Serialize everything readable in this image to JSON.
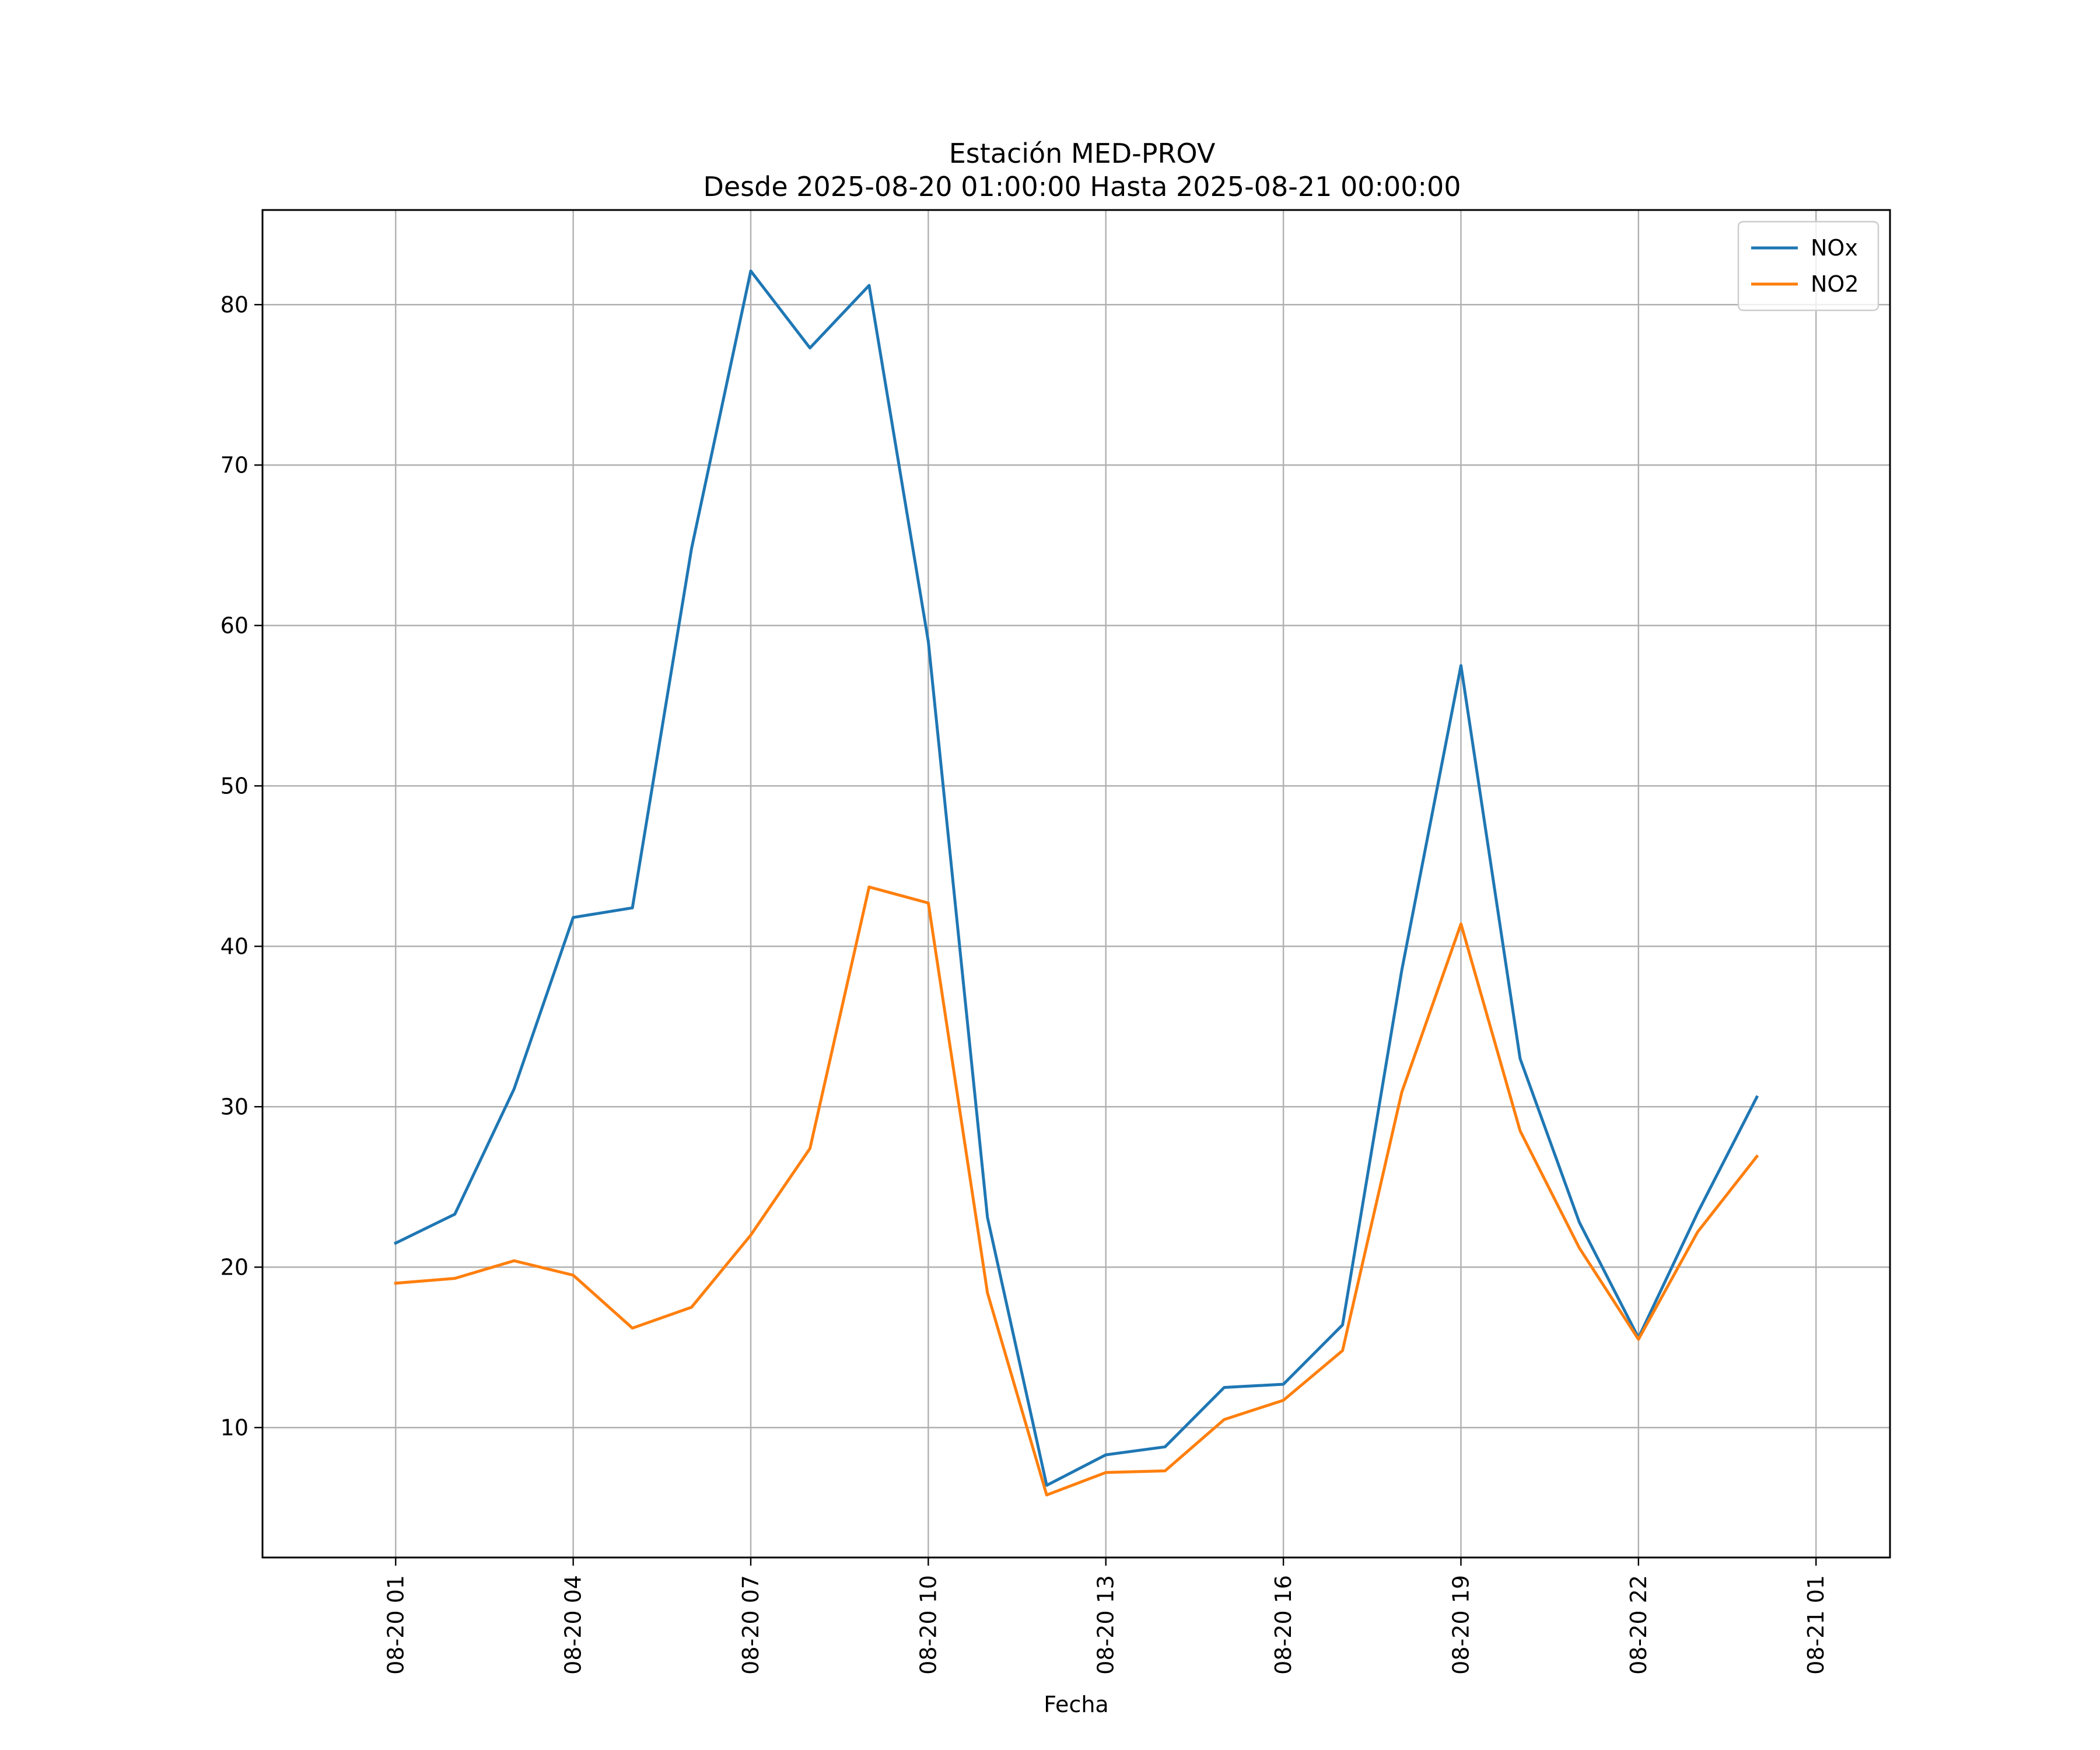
{
  "chart_data": {
    "type": "line",
    "title": "Estación MED-PROV",
    "subtitle": "Desde 2025-08-20 01:00:00 Hasta 2025-08-21 00:00:00",
    "xlabel": "Fecha",
    "ylabel": "",
    "x": [
      "2025-08-20 01:00",
      "2025-08-20 02:00",
      "2025-08-20 03:00",
      "2025-08-20 04:00",
      "2025-08-20 05:00",
      "2025-08-20 06:00",
      "2025-08-20 07:00",
      "2025-08-20 08:00",
      "2025-08-20 09:00",
      "2025-08-20 10:00",
      "2025-08-20 11:00",
      "2025-08-20 12:00",
      "2025-08-20 13:00",
      "2025-08-20 14:00",
      "2025-08-20 15:00",
      "2025-08-20 16:00",
      "2025-08-20 17:00",
      "2025-08-20 18:00",
      "2025-08-20 19:00",
      "2025-08-20 20:00",
      "2025-08-20 21:00",
      "2025-08-20 22:00",
      "2025-08-20 23:00",
      "2025-08-21 00:00"
    ],
    "xlim": [
      "2025-08-19 22:45",
      "2025-08-21 02:15"
    ],
    "ylim": [
      1.9,
      85.9
    ],
    "x_tick_labels": [
      "08-20 01",
      "08-20 04",
      "08-20 07",
      "08-20 10",
      "08-20 13",
      "08-20 16",
      "08-20 19",
      "08-20 22",
      "08-21 01"
    ],
    "x_tick_values": [
      "2025-08-20 01:00",
      "2025-08-20 04:00",
      "2025-08-20 07:00",
      "2025-08-20 10:00",
      "2025-08-20 13:00",
      "2025-08-20 16:00",
      "2025-08-20 19:00",
      "2025-08-20 22:00",
      "2025-08-21 01:00"
    ],
    "y_ticks": [
      10,
      20,
      30,
      40,
      50,
      60,
      70,
      80
    ],
    "grid": true,
    "legend_position": "top-right",
    "series": [
      {
        "name": "NOx",
        "color": "#1f77b4",
        "values": [
          21.5,
          23.3,
          31.1,
          41.8,
          42.4,
          64.8,
          82.1,
          77.3,
          81.2,
          59.0,
          23.1,
          6.4,
          8.3,
          8.8,
          12.5,
          12.7,
          16.4,
          38.5,
          57.5,
          33.0,
          22.8,
          15.6,
          23.4,
          30.6
        ]
      },
      {
        "name": "NO2",
        "color": "#ff7f0e",
        "values": [
          19.0,
          19.3,
          20.4,
          19.5,
          16.2,
          17.5,
          22.0,
          27.4,
          43.7,
          42.7,
          18.4,
          5.8,
          7.2,
          7.3,
          10.5,
          11.7,
          14.8,
          30.9,
          41.4,
          28.5,
          21.2,
          15.5,
          22.2,
          26.9
        ]
      }
    ]
  }
}
